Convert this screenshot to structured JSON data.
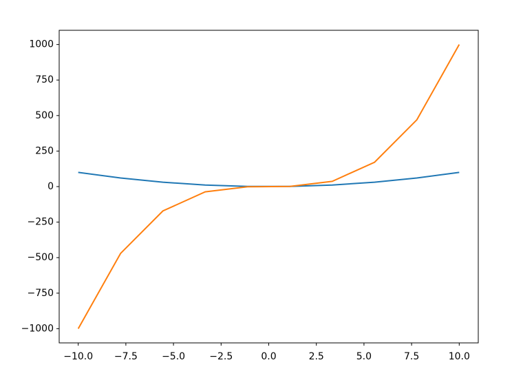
{
  "chart_data": {
    "type": "line",
    "x": [
      -10,
      -7.778,
      -5.556,
      -3.333,
      -1.111,
      1.111,
      3.333,
      5.556,
      7.778,
      10
    ],
    "series": [
      {
        "color": "#1f77b4",
        "values": [
          100,
          60.49,
          30.86,
          11.11,
          1.23,
          1.23,
          11.11,
          30.86,
          60.49,
          100
        ]
      },
      {
        "color": "#ff7f0e",
        "values": [
          -1000,
          -470.5,
          -171.5,
          -37.04,
          -1.37,
          1.37,
          37.04,
          171.5,
          470.5,
          1000
        ]
      }
    ],
    "xlim": [
      -11,
      11
    ],
    "ylim": [
      -1100,
      1100
    ],
    "xticks": [
      {
        "value": -10,
        "label": "−10.0"
      },
      {
        "value": -7.5,
        "label": "−7.5"
      },
      {
        "value": -5,
        "label": "−5.0"
      },
      {
        "value": -2.5,
        "label": "−2.5"
      },
      {
        "value": 0,
        "label": "0.0"
      },
      2.5,
      {
        "value": 5,
        "label": "5.0"
      },
      7.5,
      {
        "value": 10,
        "label": "10.0"
      }
    ],
    "yticks": [
      {
        "value": -1000,
        "label": "−1000"
      },
      {
        "value": -750,
        "label": "−750"
      },
      {
        "value": -500,
        "label": "−500"
      },
      {
        "value": -250,
        "label": "−250"
      },
      0,
      250,
      500,
      750,
      1000
    ]
  }
}
